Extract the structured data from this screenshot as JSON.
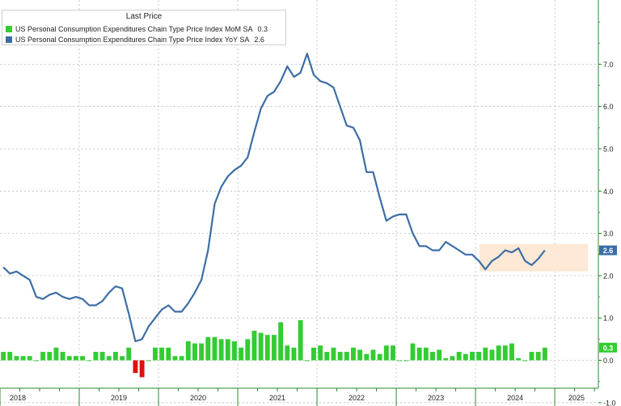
{
  "colors": {
    "yoy_line": "#3c6ea5",
    "mom_pos": "#33cc33",
    "mom_neg": "#dd1111",
    "grid": "#bbbbbb",
    "axis": "#2b8a2b",
    "highlight": "#fde9d6"
  },
  "legend": {
    "title": "Last Price",
    "items": [
      {
        "label": "US Personal Consumption Expenditures Chain Type Price Index MoM SA",
        "value": "0.3"
      },
      {
        "label": "US Personal Consumption Expenditures Chain Type Price Index YoY SA",
        "value": "2.6"
      }
    ]
  },
  "chart_data": {
    "type": "line+bar",
    "x_years": [
      "2018",
      "2019",
      "2020",
      "2021",
      "2022",
      "2023",
      "2024",
      "2025"
    ],
    "x_range": [
      2018.0,
      2025.55
    ],
    "ylim": [
      -1.0,
      8.0
    ],
    "y_ticks": [
      "-1.0",
      "0.0",
      "1.0",
      "2.0",
      "3.0",
      "4.0",
      "5.0",
      "6.0",
      "7.0"
    ],
    "last_labels": {
      "yoy": "2.6",
      "mom": "0.3"
    },
    "series": [
      {
        "name": "US Personal Consumption Expenditures Chain Type Price Index YoY SA",
        "type": "line",
        "start": "2018-01",
        "values": [
          2.2,
          2.05,
          2.1,
          2.0,
          1.9,
          1.5,
          1.45,
          1.55,
          1.6,
          1.5,
          1.45,
          1.5,
          1.45,
          1.3,
          1.3,
          1.4,
          1.6,
          1.75,
          1.7,
          1.1,
          0.45,
          0.5,
          0.8,
          1.0,
          1.2,
          1.3,
          1.15,
          1.15,
          1.35,
          1.6,
          1.9,
          2.6,
          3.7,
          4.1,
          4.35,
          4.5,
          4.6,
          4.8,
          5.4,
          5.95,
          6.25,
          6.35,
          6.6,
          6.95,
          6.7,
          6.8,
          7.25,
          6.75,
          6.6,
          6.55,
          6.45,
          6.0,
          5.55,
          5.5,
          5.2,
          4.45,
          4.45,
          3.85,
          3.3,
          3.4,
          3.45,
          3.45,
          3.0,
          2.7,
          2.7,
          2.6,
          2.6,
          2.8,
          2.7,
          2.6,
          2.5,
          2.5,
          2.35,
          2.15,
          2.35,
          2.45,
          2.6,
          2.55,
          2.65,
          2.35,
          2.25,
          2.4,
          2.6
        ]
      },
      {
        "name": "US Personal Consumption Expenditures Chain Type Price Index MoM SA",
        "type": "bar",
        "start": "2018-01",
        "values": [
          0.2,
          0.2,
          0.1,
          0.1,
          0.1,
          0.0,
          0.2,
          0.2,
          0.3,
          0.2,
          0.1,
          0.1,
          0.1,
          0.0,
          0.2,
          0.2,
          0.1,
          0.2,
          0.1,
          0.3,
          -0.3,
          -0.4,
          0.0,
          0.3,
          0.3,
          0.3,
          0.1,
          0.1,
          0.45,
          0.4,
          0.4,
          0.55,
          0.55,
          0.5,
          0.5,
          0.45,
          0.3,
          0.5,
          0.7,
          0.65,
          0.6,
          0.6,
          0.9,
          0.35,
          0.3,
          0.95,
          0.0,
          0.3,
          0.35,
          0.2,
          0.3,
          0.2,
          0.2,
          0.3,
          0.25,
          0.15,
          0.25,
          0.15,
          0.35,
          0.35,
          0.0,
          0.0,
          0.4,
          0.3,
          0.3,
          0.2,
          0.25,
          0.05,
          0.1,
          0.2,
          0.15,
          0.2,
          0.2,
          0.3,
          0.25,
          0.35,
          0.35,
          0.4,
          0.05,
          0.0,
          0.2,
          0.2,
          0.3
        ]
      }
    ],
    "highlight_range": {
      "x": [
        2024.05,
        2025.42
      ],
      "y": [
        2.1,
        2.75
      ]
    }
  }
}
